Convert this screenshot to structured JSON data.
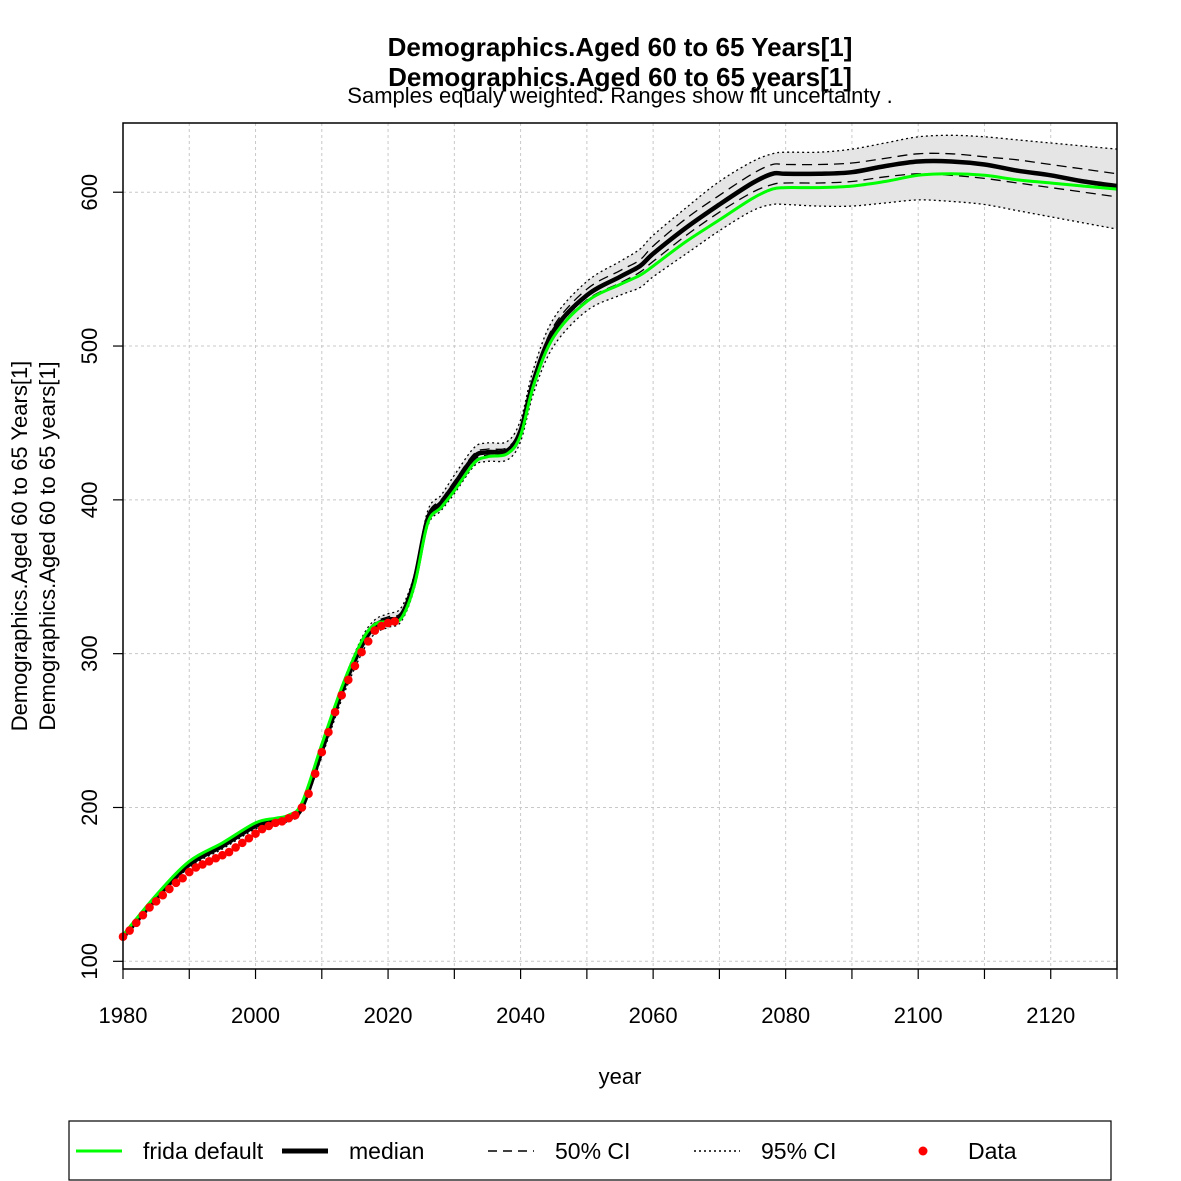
{
  "chart_data": {
    "type": "line",
    "title_lines": [
      "Demographics.Aged 60 to 65 Years[1]",
      "Demographics.Aged 60 to 65 years[1]"
    ],
    "subtitle": "Samples equaly weighted. Ranges show  fit uncertainty .",
    "xlabel": "year",
    "ylabel_lines": [
      "Demographics.Aged 60 to 65 Years[1]",
      "Demographics.Aged 60 to 65 years[1]"
    ],
    "xlim": [
      1980,
      2130
    ],
    "ylim": [
      95,
      645
    ],
    "x_ticks": [
      1980,
      2000,
      2020,
      2040,
      2060,
      2080,
      2100,
      2120
    ],
    "y_ticks": [
      100,
      200,
      300,
      400,
      500,
      600
    ],
    "grid": true,
    "legend_position": "bottom",
    "legend": [
      {
        "label": "frida default",
        "style": "green-line"
      },
      {
        "label": "median",
        "style": "thick-black-line"
      },
      {
        "label": "50% CI",
        "style": "dashed"
      },
      {
        "label": "95% CI",
        "style": "dotted"
      },
      {
        "label": "Data",
        "style": "red-point"
      }
    ],
    "colors": {
      "frida_default": "#00ff00",
      "median": "#000000",
      "data": "#ff0000",
      "band": "#e5e5e5"
    },
    "x": [
      1980,
      1985,
      1990,
      1995,
      2000,
      2003,
      2005,
      2007,
      2010,
      2013,
      2016,
      2018,
      2020,
      2022,
      2024,
      2026,
      2028,
      2030,
      2033,
      2035,
      2038,
      2040,
      2042,
      2045,
      2050,
      2055,
      2058,
      2060,
      2065,
      2070,
      2075,
      2078,
      2080,
      2085,
      2090,
      2095,
      2100,
      2105,
      2110,
      2115,
      2120,
      2125,
      2130
    ],
    "series": [
      {
        "name": "median",
        "values": [
          116,
          141,
          163,
          175,
          188,
          191,
          193,
          200,
          237,
          275,
          305,
          318,
          322,
          325,
          348,
          388,
          398,
          410,
          428,
          431,
          432,
          445,
          478,
          510,
          533,
          545,
          552,
          560,
          577,
          592,
          606,
          612,
          612,
          612,
          613,
          617,
          620,
          620,
          618,
          614,
          611,
          607,
          604
        ]
      },
      {
        "name": "frida default",
        "values": [
          117,
          143,
          165,
          177,
          190,
          193,
          195,
          203,
          241,
          278,
          308,
          319,
          321,
          323,
          345,
          385,
          395,
          406,
          424,
          428,
          430,
          442,
          475,
          506,
          529,
          540,
          546,
          552,
          568,
          582,
          596,
          602,
          603,
          603,
          604,
          607,
          611,
          612,
          611,
          608,
          606,
          604,
          602
        ]
      },
      {
        "name": "50% CI low",
        "values": [
          115,
          140,
          162,
          174,
          187,
          190,
          192,
          199,
          235,
          273,
          303,
          316,
          320,
          324,
          346,
          386,
          396,
          408,
          426,
          429,
          430,
          443,
          476,
          507,
          530,
          541,
          548,
          555,
          572,
          587,
          600,
          605,
          606,
          606,
          607,
          610,
          612,
          611,
          609,
          606,
          603,
          600,
          597
        ]
      },
      {
        "name": "50% CI high",
        "values": [
          117,
          142,
          164,
          176,
          189,
          192,
          194,
          201,
          239,
          277,
          308,
          320,
          324,
          327,
          350,
          390,
          400,
          412,
          430,
          433,
          434,
          447,
          480,
          513,
          537,
          549,
          556,
          565,
          583,
          598,
          612,
          618,
          618,
          618,
          619,
          622,
          625,
          625,
          623,
          621,
          618,
          615,
          612
        ]
      },
      {
        "name": "95% CI low",
        "values": [
          114,
          139,
          161,
          173,
          186,
          189,
          191,
          198,
          233,
          270,
          300,
          313,
          317,
          321,
          343,
          383,
          393,
          404,
          422,
          425,
          426,
          438,
          470,
          500,
          523,
          533,
          538,
          545,
          560,
          575,
          588,
          592,
          592,
          591,
          591,
          593,
          595,
          594,
          592,
          588,
          584,
          580,
          576
        ]
      },
      {
        "name": "95% CI high",
        "values": [
          118,
          143,
          165,
          177,
          190,
          193,
          195,
          203,
          241,
          279,
          310,
          322,
          326,
          330,
          352,
          393,
          403,
          416,
          434,
          437,
          438,
          452,
          486,
          518,
          542,
          555,
          563,
          572,
          590,
          607,
          620,
          625,
          626,
          626,
          628,
          632,
          636,
          637,
          636,
          634,
          632,
          630,
          628
        ]
      }
    ],
    "data_points": {
      "name": "Data",
      "x": [
        1980,
        1981,
        1982,
        1983,
        1984,
        1985,
        1986,
        1987,
        1988,
        1989,
        1990,
        1991,
        1992,
        1993,
        1994,
        1995,
        1996,
        1997,
        1998,
        1999,
        2000,
        2001,
        2002,
        2003,
        2004,
        2005,
        2006,
        2007,
        2008,
        2009,
        2010,
        2011,
        2012,
        2013,
        2014,
        2015,
        2016,
        2017,
        2018,
        2019,
        2020,
        2021
      ],
      "y": [
        116,
        120,
        125,
        130,
        135,
        139,
        143,
        147,
        151,
        154,
        158,
        161,
        163,
        165,
        167,
        169,
        171,
        174,
        177,
        180,
        183,
        186,
        188,
        190,
        191,
        193,
        195,
        200,
        209,
        222,
        236,
        249,
        262,
        273,
        283,
        292,
        301,
        308,
        315,
        318,
        320,
        321
      ]
    }
  }
}
